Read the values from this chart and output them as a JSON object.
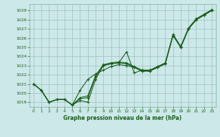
{
  "title": "Graphe pression niveau de la mer (hPa)",
  "bg_color": "#cce8e8",
  "grid_color": "#9bbfbf",
  "line_color": "#1a5c1a",
  "ylim": [
    1018.5,
    1029.7
  ],
  "yticks": [
    1019,
    1020,
    1021,
    1022,
    1023,
    1024,
    1025,
    1026,
    1027,
    1028,
    1029
  ],
  "series": [
    [
      1021.0,
      1020.3,
      1019.0,
      1019.3,
      1019.3,
      1018.7,
      1019.2,
      1019.0,
      1021.5,
      1023.0,
      1023.2,
      1023.3,
      1024.5,
      1022.2,
      1022.5,
      1022.5,
      1022.8,
      1023.2,
      1026.3,
      1025.0,
      1027.0,
      1028.0,
      1028.5,
      1029.0
    ],
    [
      1021.0,
      1020.3,
      1019.0,
      1019.3,
      1019.3,
      1018.7,
      1019.4,
      1019.5,
      1021.8,
      1023.0,
      1023.2,
      1023.3,
      1023.2,
      1022.8,
      1022.4,
      1022.4,
      1022.8,
      1023.2,
      1026.3,
      1025.0,
      1027.0,
      1028.0,
      1028.5,
      1029.0
    ],
    [
      1021.0,
      1020.3,
      1019.0,
      1019.3,
      1019.3,
      1018.7,
      1019.5,
      1019.7,
      1021.9,
      1023.1,
      1023.3,
      1023.4,
      1023.3,
      1022.9,
      1022.5,
      1022.5,
      1022.9,
      1023.3,
      1026.4,
      1025.1,
      1027.1,
      1028.1,
      1028.6,
      1029.1
    ],
    [
      1021.0,
      1020.3,
      1019.0,
      1019.3,
      1019.3,
      1018.7,
      1020.3,
      1021.5,
      1022.1,
      1022.5,
      1022.9,
      1023.1,
      1023.0,
      1022.8,
      1022.4,
      1022.4,
      1022.8,
      1023.2,
      1026.3,
      1025.0,
      1027.0,
      1028.0,
      1028.5,
      1029.0
    ]
  ]
}
